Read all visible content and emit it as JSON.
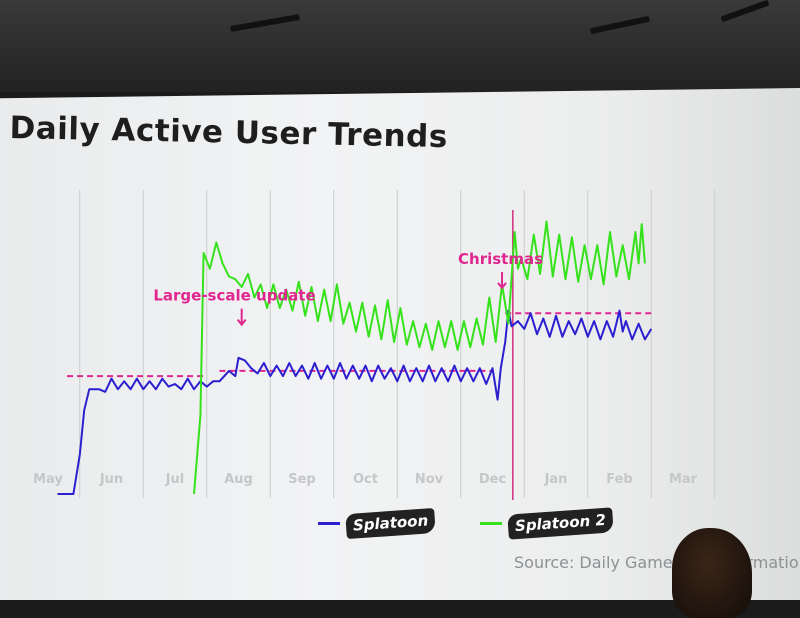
{
  "chart_data": {
    "type": "line",
    "title": "Daily Active User Trends",
    "xlabel": "",
    "ylabel": "",
    "x_ticks": [
      "May",
      "Jun",
      "Jul",
      "Aug",
      "Sep",
      "Oct",
      "Nov",
      "Dec",
      "Jan",
      "Feb",
      "Mar"
    ],
    "x_range": [
      0,
      10.4
    ],
    "y_range": [
      0,
      100
    ],
    "grid": "vertical lines between months",
    "series": [
      {
        "name": "Splatoon",
        "color": "#2b1fd0",
        "points": [
          [
            0.15,
            0
          ],
          [
            0.4,
            0
          ],
          [
            0.5,
            15
          ],
          [
            0.57,
            32
          ],
          [
            0.65,
            40
          ],
          [
            0.8,
            40
          ],
          [
            0.9,
            39
          ],
          [
            1.0,
            44
          ],
          [
            1.1,
            40
          ],
          [
            1.2,
            43
          ],
          [
            1.3,
            40
          ],
          [
            1.4,
            44
          ],
          [
            1.5,
            40
          ],
          [
            1.6,
            43
          ],
          [
            1.7,
            40
          ],
          [
            1.8,
            44
          ],
          [
            1.9,
            41
          ],
          [
            2.0,
            42
          ],
          [
            2.1,
            40
          ],
          [
            2.2,
            44
          ],
          [
            2.3,
            40
          ],
          [
            2.4,
            43
          ],
          [
            2.5,
            41
          ],
          [
            2.6,
            43
          ],
          [
            2.7,
            43
          ],
          [
            2.85,
            47
          ],
          [
            2.95,
            45
          ],
          [
            3.0,
            52
          ],
          [
            3.1,
            51
          ],
          [
            3.2,
            48
          ],
          [
            3.3,
            46
          ],
          [
            3.4,
            50
          ],
          [
            3.5,
            45
          ],
          [
            3.6,
            49
          ],
          [
            3.7,
            45
          ],
          [
            3.8,
            50
          ],
          [
            3.9,
            45
          ],
          [
            4.0,
            49
          ],
          [
            4.1,
            44
          ],
          [
            4.2,
            50
          ],
          [
            4.3,
            44
          ],
          [
            4.4,
            49
          ],
          [
            4.5,
            44
          ],
          [
            4.6,
            50
          ],
          [
            4.7,
            44
          ],
          [
            4.8,
            49
          ],
          [
            4.9,
            44
          ],
          [
            5.0,
            49
          ],
          [
            5.1,
            43
          ],
          [
            5.2,
            49
          ],
          [
            5.3,
            44
          ],
          [
            5.4,
            48
          ],
          [
            5.5,
            43
          ],
          [
            5.6,
            49
          ],
          [
            5.7,
            43
          ],
          [
            5.8,
            48
          ],
          [
            5.9,
            43
          ],
          [
            6.0,
            49
          ],
          [
            6.1,
            43
          ],
          [
            6.2,
            48
          ],
          [
            6.3,
            43
          ],
          [
            6.4,
            49
          ],
          [
            6.5,
            43
          ],
          [
            6.6,
            48
          ],
          [
            6.7,
            43
          ],
          [
            6.8,
            48
          ],
          [
            6.9,
            42
          ],
          [
            7.0,
            48
          ],
          [
            7.08,
            36
          ],
          [
            7.13,
            48
          ],
          [
            7.2,
            58
          ],
          [
            7.25,
            70
          ],
          [
            7.3,
            64
          ],
          [
            7.4,
            66
          ],
          [
            7.5,
            63
          ],
          [
            7.6,
            69
          ],
          [
            7.7,
            61
          ],
          [
            7.8,
            67
          ],
          [
            7.9,
            60
          ],
          [
            8.0,
            68
          ],
          [
            8.1,
            60
          ],
          [
            8.2,
            66
          ],
          [
            8.3,
            61
          ],
          [
            8.4,
            67
          ],
          [
            8.5,
            60
          ],
          [
            8.6,
            66
          ],
          [
            8.7,
            59
          ],
          [
            8.8,
            66
          ],
          [
            8.9,
            60
          ],
          [
            9.0,
            70
          ],
          [
            9.05,
            62
          ],
          [
            9.1,
            66
          ],
          [
            9.2,
            59
          ],
          [
            9.3,
            65
          ],
          [
            9.4,
            59
          ],
          [
            9.5,
            63
          ]
        ]
      },
      {
        "name": "Splatoon 2",
        "color": "#35e21b",
        "points": [
          [
            2.3,
            0
          ],
          [
            2.4,
            30
          ],
          [
            2.45,
            92
          ],
          [
            2.55,
            86
          ],
          [
            2.65,
            96
          ],
          [
            2.75,
            88
          ],
          [
            2.85,
            83
          ],
          [
            2.95,
            82
          ],
          [
            3.05,
            79
          ],
          [
            3.15,
            84
          ],
          [
            3.25,
            75
          ],
          [
            3.35,
            80
          ],
          [
            3.45,
            71
          ],
          [
            3.55,
            80
          ],
          [
            3.65,
            71
          ],
          [
            3.75,
            78
          ],
          [
            3.85,
            70
          ],
          [
            3.95,
            81
          ],
          [
            4.05,
            68
          ],
          [
            4.15,
            79
          ],
          [
            4.25,
            66
          ],
          [
            4.35,
            78
          ],
          [
            4.45,
            66
          ],
          [
            4.55,
            80
          ],
          [
            4.65,
            65
          ],
          [
            4.75,
            73
          ],
          [
            4.85,
            62
          ],
          [
            4.95,
            73
          ],
          [
            5.05,
            60
          ],
          [
            5.15,
            72
          ],
          [
            5.25,
            59
          ],
          [
            5.35,
            74
          ],
          [
            5.45,
            58
          ],
          [
            5.55,
            71
          ],
          [
            5.65,
            57
          ],
          [
            5.75,
            66
          ],
          [
            5.85,
            56
          ],
          [
            5.95,
            65
          ],
          [
            6.05,
            55
          ],
          [
            6.15,
            66
          ],
          [
            6.25,
            56
          ],
          [
            6.35,
            66
          ],
          [
            6.45,
            55
          ],
          [
            6.55,
            66
          ],
          [
            6.65,
            56
          ],
          [
            6.75,
            67
          ],
          [
            6.85,
            57
          ],
          [
            6.95,
            75
          ],
          [
            7.05,
            58
          ],
          [
            7.15,
            80
          ],
          [
            7.25,
            65
          ],
          [
            7.35,
            100
          ],
          [
            7.4,
            86
          ],
          [
            7.45,
            90
          ],
          [
            7.55,
            82
          ],
          [
            7.65,
            99
          ],
          [
            7.75,
            84
          ],
          [
            7.85,
            104
          ],
          [
            7.95,
            83
          ],
          [
            8.05,
            99
          ],
          [
            8.15,
            82
          ],
          [
            8.25,
            98
          ],
          [
            8.35,
            81
          ],
          [
            8.45,
            95
          ],
          [
            8.55,
            82
          ],
          [
            8.65,
            95
          ],
          [
            8.75,
            80
          ],
          [
            8.85,
            100
          ],
          [
            8.95,
            83
          ],
          [
            9.05,
            95
          ],
          [
            9.15,
            82
          ],
          [
            9.25,
            100
          ],
          [
            9.3,
            88
          ],
          [
            9.35,
            103
          ],
          [
            9.4,
            88
          ]
        ]
      }
    ],
    "reference_lines": [
      {
        "x_from": 0.3,
        "x_to": 2.45,
        "y": 45
      },
      {
        "x_from": 2.7,
        "x_to": 7.0,
        "y": 47
      },
      {
        "x_from": 7.2,
        "x_to": 9.5,
        "y": 69
      }
    ],
    "vertical_markers": [
      {
        "x": 7.32
      }
    ],
    "annotations": [
      {
        "text": "Large-scale update",
        "x": 3.0,
        "y": 70
      },
      {
        "text": "Christmas",
        "x": 7.15,
        "y": 84
      }
    ],
    "legend": {
      "position": "bottom-center",
      "entries": [
        "Splatoon",
        "Splatoon 2"
      ]
    },
    "source": "Source: Daily Game",
    "source_tail": "ormatio"
  }
}
